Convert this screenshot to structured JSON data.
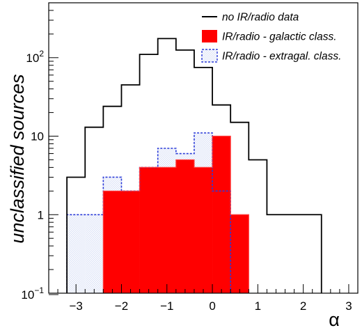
{
  "chart_data": {
    "type": "histogram",
    "title": "",
    "xlabel": "α",
    "ylabel": "unclassified sources",
    "yscale": "log",
    "xlim": [
      -3.6,
      3.2
    ],
    "ylim": [
      0.1,
      500
    ],
    "x_ticks": [
      "−3",
      "−2",
      "−1",
      "0",
      "1",
      "2",
      "3"
    ],
    "y_ticks": [
      {
        "value": 0.1,
        "base": "10",
        "exp": "−1"
      },
      {
        "value": 1,
        "label": "1"
      },
      {
        "value": 10,
        "label": "10"
      },
      {
        "value": 100,
        "base": "10",
        "exp": "2"
      }
    ],
    "bin_edges": [
      -3.6,
      -3.2,
      -2.8,
      -2.4,
      -2.0,
      -1.6,
      -1.2,
      -0.8,
      -0.4,
      0.0,
      0.4,
      0.8,
      1.2,
      1.6,
      2.0,
      2.4,
      2.8,
      3.2
    ],
    "series": [
      {
        "name": "no IR/radio data",
        "style": "line",
        "color": "#000000",
        "values": [
          0,
          3,
          13,
          24,
          45,
          110,
          175,
          125,
          75,
          25,
          15,
          5,
          1,
          1,
          1,
          0,
          0
        ]
      },
      {
        "name": "IR/radio - galactic class.",
        "style": "filled",
        "color": "#ff0000",
        "values": [
          0,
          0,
          0,
          2,
          2,
          4,
          4,
          5,
          4,
          10,
          1,
          0,
          0,
          0,
          0,
          0,
          0
        ]
      },
      {
        "name": "IR/radio - extragal. class.",
        "style": "dotted",
        "color": "#2a3ad8",
        "fill": "#dce3f7",
        "values": [
          0,
          1,
          1,
          3,
          2,
          4,
          7,
          6,
          11,
          2,
          0,
          0,
          0,
          0,
          0,
          0,
          0
        ]
      }
    ],
    "legend_position": "top-right"
  }
}
